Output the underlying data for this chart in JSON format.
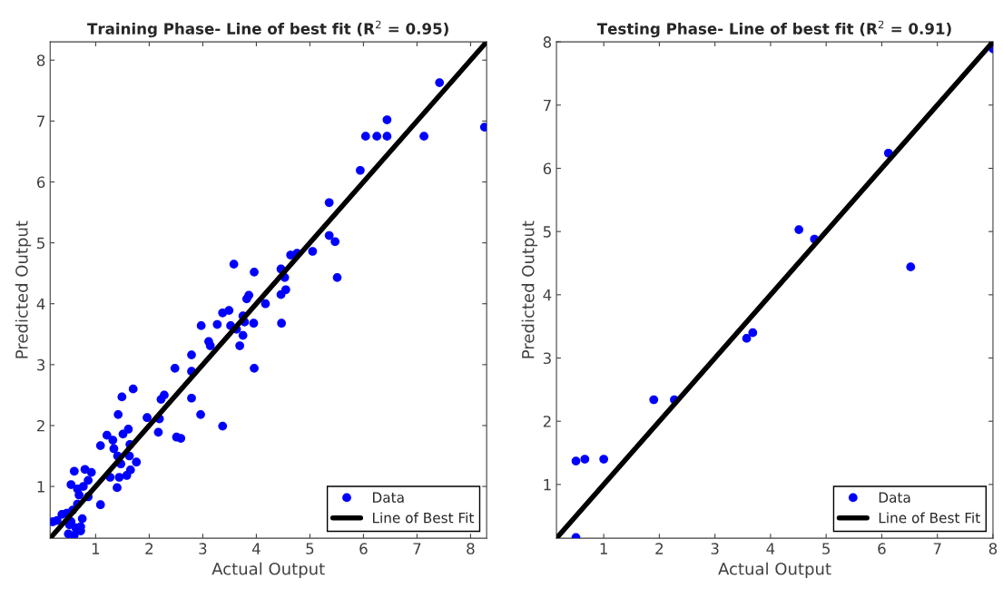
{
  "chart_data": [
    {
      "type": "scatter",
      "title": "Training Phase- Line of best fit (R$^{2}$ = 0.95)",
      "xlabel": "Actual Output",
      "ylabel": "Predicted Output",
      "xlim": [
        0.15,
        8.3
      ],
      "ylim": [
        0.15,
        8.3
      ],
      "xticks": [
        1,
        2,
        3,
        4,
        5,
        6,
        7,
        8
      ],
      "yticks": [
        1,
        2,
        3,
        4,
        5,
        6,
        7,
        8
      ],
      "grid": false,
      "legend": "bottom right",
      "series": [
        {
          "name": "Data",
          "color": "#0000ff",
          "marker": "circle",
          "x": [
            7.42,
            6.44,
            6.04,
            6.25,
            6.44,
            7.13,
            8.26,
            5.94,
            5.36,
            5.36,
            5.47,
            5.51,
            5.05,
            4.64,
            4.76,
            4.46,
            4.53,
            4.55,
            4.46,
            4.47,
            3.58,
            3.96,
            3.86,
            3.82,
            4.17,
            3.49,
            3.37,
            3.27,
            2.97,
            3.52,
            3.75,
            3.78,
            3.95,
            3.63,
            3.75,
            3.69,
            3.11,
            3.14,
            2.79,
            2.48,
            2.79,
            3.96,
            2.79,
            2.28,
            3.37,
            2.96,
            2.51,
            2.59,
            2.17,
            1.96,
            2.19,
            2.22,
            1.7,
            1.49,
            1.42,
            1.51,
            1.61,
            1.21,
            1.32,
            1.09,
            1.34,
            1.41,
            1.64,
            1.76,
            1.63,
            1.47,
            1.65,
            1.58,
            1.44,
            1.27,
            1.4,
            1.09,
            0.6,
            0.8,
            0.92,
            0.54,
            0.66,
            0.77,
            0.86,
            0.69,
            0.86,
            0.66,
            0.57,
            0.46,
            0.37,
            0.2,
            0.28,
            0.54,
            0.75,
            0.72,
            0.63,
            0.49,
            0.6,
            0.72,
            0.51
          ],
          "values": [
            7.63,
            7.02,
            6.75,
            6.75,
            6.75,
            6.75,
            6.9,
            6.19,
            5.66,
            5.12,
            5.02,
            4.43,
            4.86,
            4.8,
            4.83,
            4.57,
            4.43,
            4.23,
            4.15,
            3.68,
            4.65,
            4.52,
            4.14,
            4.08,
            4.0,
            3.89,
            3.85,
            3.66,
            3.64,
            3.64,
            3.8,
            3.7,
            3.68,
            3.58,
            3.48,
            3.31,
            3.38,
            3.31,
            3.16,
            2.94,
            2.89,
            2.94,
            2.45,
            2.5,
            1.99,
            2.18,
            1.81,
            1.79,
            1.89,
            2.13,
            2.11,
            2.43,
            2.6,
            2.47,
            2.18,
            1.86,
            1.94,
            1.84,
            1.76,
            1.67,
            1.62,
            1.5,
            1.69,
            1.4,
            1.5,
            1.37,
            1.27,
            1.18,
            1.15,
            1.15,
            0.98,
            0.7,
            1.25,
            1.28,
            1.23,
            1.03,
            0.96,
            1.0,
            1.1,
            0.86,
            0.83,
            0.71,
            0.61,
            0.56,
            0.54,
            0.42,
            0.44,
            0.42,
            0.47,
            0.34,
            0.32,
            0.22,
            0.2,
            0.27,
            0.37
          ]
        },
        {
          "name": "Line of Best Fit",
          "type": "line",
          "color": "#000000",
          "line_style": "solid",
          "x": [
            0.15,
            8.3
          ],
          "values": [
            0.15,
            8.3
          ]
        }
      ]
    },
    {
      "type": "scatter",
      "title": "Testing Phase- Line of best fit (R$^{2}$ = 0.91)",
      "xlabel": "Actual Output",
      "ylabel": "Predicted Output",
      "xlim": [
        0.15,
        8
      ],
      "ylim": [
        0.15,
        8
      ],
      "xticks": [
        1,
        2,
        3,
        4,
        5,
        6,
        7,
        8
      ],
      "yticks": [
        1,
        2,
        3,
        4,
        5,
        6,
        7,
        8
      ],
      "grid": false,
      "legend": "bottom right",
      "series": [
        {
          "name": "Data",
          "color": "#0000ff",
          "marker": "circle",
          "x": [
            0.5,
            0.66,
            1.0,
            0.5,
            1.9,
            2.27,
            3.57,
            3.68,
            4.51,
            4.79,
            6.12,
            6.52,
            8.0
          ],
          "values": [
            1.37,
            1.4,
            1.4,
            0.16,
            2.34,
            2.34,
            3.31,
            3.4,
            5.03,
            4.88,
            6.24,
            4.44,
            7.89
          ]
        },
        {
          "name": "Line of Best Fit",
          "type": "line",
          "color": "#000000",
          "line_style": "solid",
          "x": [
            0.15,
            8
          ],
          "values": [
            0.15,
            8
          ]
        }
      ]
    }
  ]
}
